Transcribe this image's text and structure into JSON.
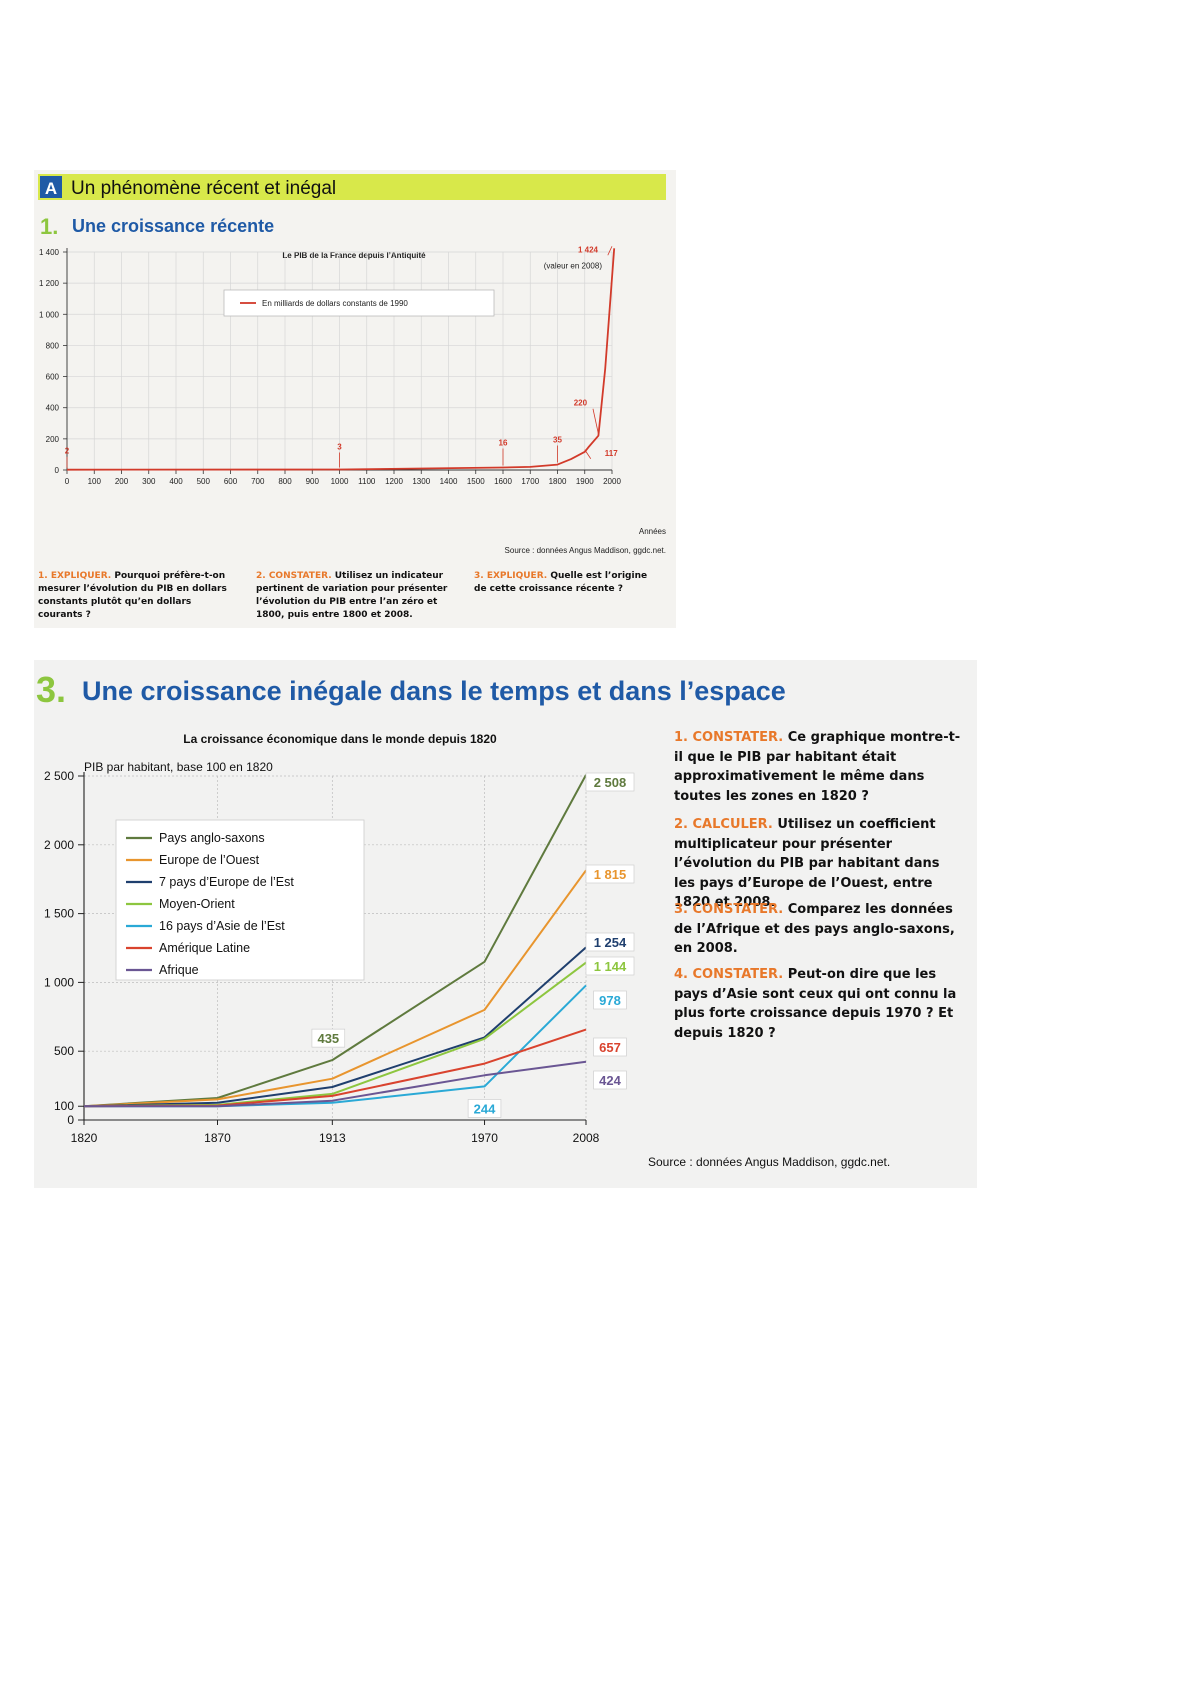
{
  "panel_a": {
    "badge": "A",
    "title": "Un phénomène récent et inégal",
    "section_number": "1.",
    "section_title": "Une croissance récente",
    "questions": [
      {
        "number": "1.",
        "verb": "EXPLIQUER.",
        "text": "Pourquoi préfère-t-on mesurer l’évolution du PIB en dollars constants plutôt qu’en dollars courants ?"
      },
      {
        "number": "2.",
        "verb": "CONSTATER.",
        "text": "Utilisez un indicateur pertinent de variation pour présenter l’évolution du PIB entre l’an zéro et 1800, puis entre 1800 et 2008."
      },
      {
        "number": "3.",
        "verb": "EXPLIQUER.",
        "text": "Quelle est l’origine de cette croissance récente ?"
      }
    ]
  },
  "panel_b": {
    "section_number": "3.",
    "section_title": "Une croissance inégale dans le temps et dans l’espace",
    "questions": [
      {
        "number": "1.",
        "verb": "CONSTATER.",
        "text": "Ce graphique montre-t-il que le PIB par habitant était approximativement le même dans toutes les zones en 1820 ?"
      },
      {
        "number": "2.",
        "verb": "CALCULER.",
        "text": "Utilisez un coefficient multiplicateur pour présenter l’évolution du PIB par habitant dans les pays d’Europe de l’Ouest, entre 1820 et 2008."
      },
      {
        "number": "3.",
        "verb": "CONSTATER.",
        "text": "Comparez les données de l’Afrique et des pays anglo-saxons, en 2008."
      },
      {
        "number": "4.",
        "verb": "CONSTATER.",
        "text": "Peut-on dire que les pays d’Asie sont ceux qui ont connu la plus forte croissance depuis 1970 ? Et depuis 1820 ?"
      }
    ]
  },
  "chart_data": [
    {
      "type": "line",
      "title": "Le PIB de la France depuis l’Antiquité",
      "xlabel": "Années",
      "ylabel": "",
      "x": [
        0,
        1000,
        1600,
        1700,
        1800,
        1850,
        1900,
        1913,
        1950,
        1975,
        2008
      ],
      "series": [
        {
          "name": "En milliards de dollars constants de 1990",
          "color": "#d23a2a",
          "values": [
            2,
            3,
            16,
            20,
            35,
            70,
            117,
            145,
            220,
            650,
            1424
          ]
        }
      ],
      "xlim": [
        0,
        2000
      ],
      "ylim": [
        0,
        1400
      ],
      "xticks": [
        0,
        100,
        200,
        300,
        400,
        500,
        600,
        700,
        800,
        900,
        1000,
        1100,
        1200,
        1300,
        1400,
        1500,
        1600,
        1700,
        1800,
        1900,
        2000
      ],
      "yticks": [
        0,
        200,
        400,
        600,
        800,
        1000,
        1200,
        1400
      ],
      "ytick_labels": [
        "0",
        "200",
        "400",
        "600",
        "800",
        "1 000",
        "1 200",
        "1 400"
      ],
      "annotations": [
        {
          "label": "2",
          "x": 0,
          "y": 2
        },
        {
          "label": "3",
          "x": 1000,
          "y": 3
        },
        {
          "label": "16",
          "x": 1600,
          "y": 16
        },
        {
          "label": "35",
          "x": 1800,
          "y": 35
        },
        {
          "label": "117",
          "x": 1900,
          "y": 117
        },
        {
          "label": "220",
          "x": 1950,
          "y": 220
        },
        {
          "label": "1 424",
          "x": 2008,
          "y": 1424
        },
        {
          "label": "(valeur en 2008)",
          "x": 2008,
          "y": 1424
        }
      ],
      "grid": true,
      "legend_position": "top-center",
      "source": "Source : données Angus Maddison, ggdc.net."
    },
    {
      "type": "line",
      "title": "La croissance économique dans le monde depuis 1820",
      "ylabel": "PIB par habitant, base 100 en 1820",
      "xlabel": "",
      "x": [
        1820,
        1870,
        1913,
        1970,
        2008
      ],
      "series": [
        {
          "name": "Pays anglo-saxons",
          "color": "#5f7a3e",
          "values": [
            100,
            160,
            435,
            1150,
            2508
          ]
        },
        {
          "name": "Europe de l’Ouest",
          "color": "#e8952e",
          "values": [
            100,
            150,
            300,
            800,
            1815
          ]
        },
        {
          "name": "7 pays d’Europe de l’Est",
          "color": "#1f3f6e",
          "values": [
            100,
            125,
            240,
            600,
            1254
          ]
        },
        {
          "name": "Moyen-Orient",
          "color": "#8dc63f",
          "values": [
            100,
            110,
            190,
            590,
            1144
          ]
        },
        {
          "name": "16 pays d’Asie de l’Est",
          "color": "#2aa9d6",
          "values": [
            100,
            100,
            125,
            244,
            978
          ]
        },
        {
          "name": "Amérique Latine",
          "color": "#d9432e",
          "values": [
            100,
            105,
            175,
            410,
            657
          ]
        },
        {
          "name": "Afrique",
          "color": "#6a5693",
          "values": [
            100,
            100,
            140,
            325,
            424
          ]
        }
      ],
      "xlim": [
        1820,
        2008
      ],
      "ylim": [
        0,
        2500
      ],
      "yticks": [
        0,
        100,
        500,
        1000,
        1500,
        2000,
        2500
      ],
      "ytick_labels": [
        "0",
        "100",
        "500",
        "1 000",
        "1 500",
        "2 000",
        "2 500"
      ],
      "annotations": [
        {
          "label": "435",
          "x": 1913,
          "y": 435
        },
        {
          "label": "244",
          "x": 1970,
          "y": 244
        },
        {
          "label": "2 508",
          "x": 2008,
          "y": 2508
        },
        {
          "label": "1 815",
          "x": 2008,
          "y": 1815
        },
        {
          "label": "1 254",
          "x": 2008,
          "y": 1254
        },
        {
          "label": "1 144",
          "x": 2008,
          "y": 1144
        },
        {
          "label": "978",
          "x": 2008,
          "y": 978
        },
        {
          "label": "657",
          "x": 2008,
          "y": 657
        },
        {
          "label": "424",
          "x": 2008,
          "y": 424
        }
      ],
      "grid": true,
      "legend_position": "top-left",
      "source": "Source : données Angus Maddison, ggdc.net."
    }
  ]
}
